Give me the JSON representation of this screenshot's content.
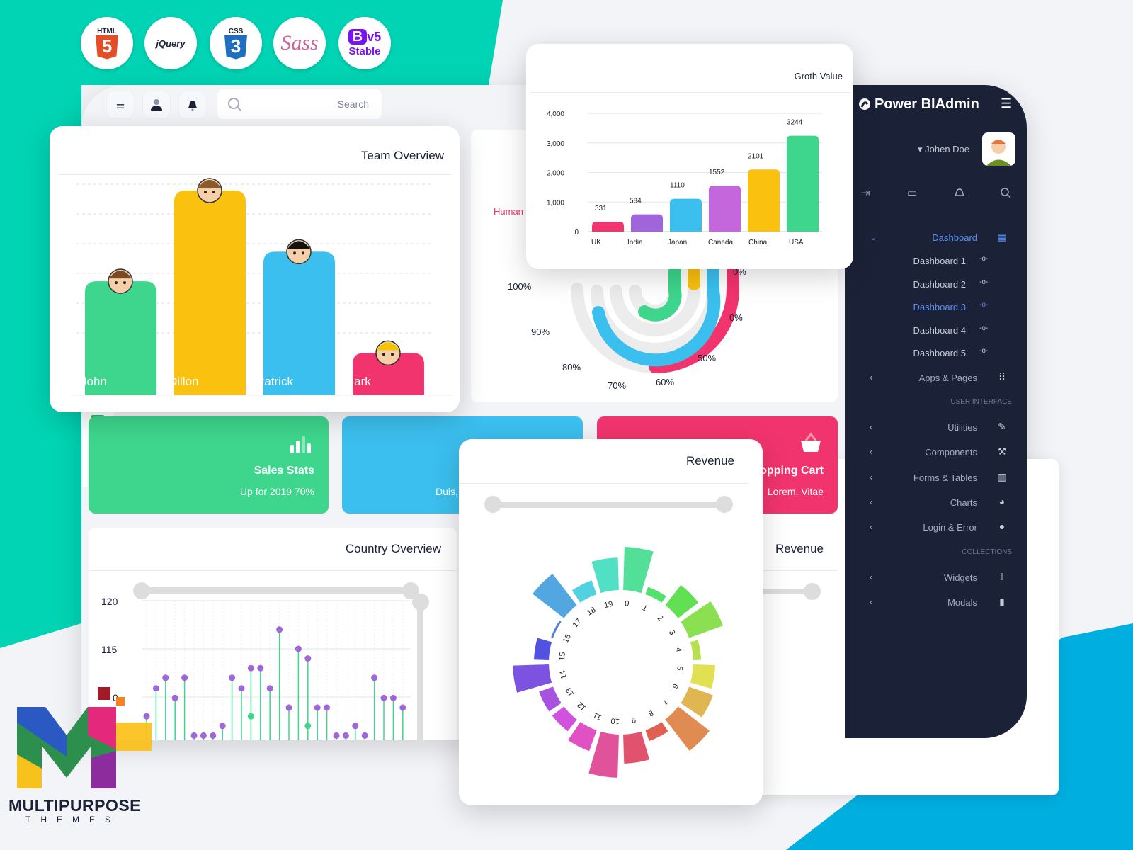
{
  "colors": {
    "teal_bg": "#00d4b4",
    "blue_bg": "#00aee0",
    "sidebar": "#1b2238",
    "accent": "#5b8ef0",
    "green": "#3dd68c",
    "yellow": "#fac10f",
    "blue": "#3bbfee",
    "pink": "#f2346e",
    "purple": "#a065db",
    "violet": "#c466dc"
  },
  "tech_badges": [
    {
      "label": "HTML",
      "glyph": "5"
    },
    {
      "label": "jQuery"
    },
    {
      "label": "CSS",
      "glyph": "3"
    },
    {
      "label": "Sass"
    },
    {
      "label": "B",
      "version": "v5",
      "sub": "Stable"
    }
  ],
  "toolbar": {
    "icons": [
      "sliders-icon",
      "user-icon",
      "bell-icon"
    ],
    "search_placeholder": "Search"
  },
  "sidebar": {
    "brand": "Power BIAdmin",
    "user": "Johen Doe",
    "quick_icons": [
      "logout-icon",
      "chat-icon",
      "bell-icon",
      "search-icon"
    ],
    "dashboard": {
      "label": "Dashboard",
      "children": [
        "Dashboard 1",
        "Dashboard 2",
        "Dashboard 3",
        "Dashboard 4",
        "Dashboard 5"
      ],
      "active": "Dashboard 3"
    },
    "apps": "Apps & Pages",
    "section_ui": "USER INTERFACE",
    "ui_items": [
      {
        "label": "Utilities",
        "icon": "edit-icon"
      },
      {
        "label": "Components",
        "icon": "brush-icon"
      },
      {
        "label": "Forms & Tables",
        "icon": "table-icon"
      },
      {
        "label": "Charts",
        "icon": "pie-chart-icon"
      },
      {
        "label": "Login & Error",
        "icon": "lock-icon"
      }
    ],
    "section_collections": "COLLECTIONS",
    "collection_items": [
      {
        "label": "Widgets",
        "icon": "library-icon"
      },
      {
        "label": "Modals",
        "icon": "book-icon"
      }
    ]
  },
  "radial_card": {
    "legend": "Human",
    "labels": [
      "100%",
      "90%",
      "80%",
      "70%",
      "60%",
      "50%",
      "0%",
      "0%"
    ]
  },
  "stats": [
    {
      "title": "Sales Stats",
      "sub": "Up for 2019 70%"
    },
    {
      "title": "",
      "sub": "Duis,"
    },
    {
      "title": "opping Cart",
      "sub": "Lorem, Vitae"
    }
  ],
  "revenue_back": {
    "title": "Revenue"
  },
  "brand_logo": {
    "line1": "MULTIPURPOSE",
    "line2": "THEMES"
  },
  "chart_data": [
    {
      "title": "Team Overview",
      "type": "bar",
      "categories": [
        "John",
        "Dillon",
        "Patrick",
        "Mark"
      ],
      "values": [
        54,
        97,
        68,
        20
      ],
      "colors": [
        "#3dd68c",
        "#fac10f",
        "#3bbfee",
        "#f2346e"
      ]
    },
    {
      "title": "Groth Value",
      "type": "bar",
      "categories": [
        "UK",
        "India",
        "Japan",
        "Canada",
        "China",
        "USA"
      ],
      "values": [
        331,
        584,
        1110,
        1552,
        2101,
        3244
      ],
      "yticks": [
        "0",
        "1,000",
        "2,000",
        "3,000",
        "4,000"
      ],
      "ylim": [
        0,
        4000
      ],
      "colors": [
        "#f2346e",
        "#a065db",
        "#3bbfee",
        "#c466dc",
        "#fac10f",
        "#3dd68c"
      ]
    },
    {
      "title": "Country Overview",
      "type": "lollipop",
      "yticks": [
        "120",
        "115",
        "0"
      ],
      "ylim": [
        104,
        120
      ],
      "values": [
        108,
        110.9,
        112,
        109.9,
        112,
        106,
        106,
        106,
        107,
        112,
        110.9,
        113,
        113,
        110.9,
        117,
        108.9,
        115,
        114,
        108.9,
        108.9,
        106,
        106,
        107,
        106,
        112,
        109.9,
        109.9,
        108.9
      ],
      "highlight": {
        "11": 108,
        "17": 107
      }
    },
    {
      "title": "Revenue",
      "type": "radial-bar",
      "categories": [
        "0",
        "1",
        "2",
        "3",
        "4",
        "5",
        "6",
        "7",
        "8",
        "9",
        "10",
        "11",
        "12",
        "13",
        "14",
        "15",
        "16",
        "17",
        "18",
        "19"
      ],
      "values": [
        60,
        10,
        35,
        50,
        10,
        30,
        35,
        55,
        15,
        40,
        60,
        30,
        20,
        20,
        50,
        20,
        2,
        55,
        20,
        45
      ]
    }
  ]
}
